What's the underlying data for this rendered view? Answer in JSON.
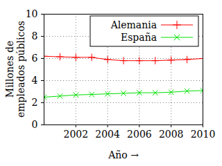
{
  "chart_data": {
    "type": "line",
    "x_label": "Año",
    "y_label": "Millones de\nempleados públicos",
    "x": [
      2000,
      2001,
      2002,
      2003,
      2004,
      2005,
      2006,
      2007,
      2008,
      2009,
      2010
    ],
    "series": [
      {
        "name": "Alemania",
        "color": "#ff0000",
        "marker": "plus",
        "values": [
          6.2,
          6.15,
          6.1,
          6.1,
          5.9,
          5.8,
          5.8,
          5.8,
          5.85,
          5.9,
          6.0
        ]
      },
      {
        "name": "España",
        "color": "#00e000",
        "marker": "times",
        "values": [
          2.5,
          2.6,
          2.7,
          2.75,
          2.8,
          2.85,
          2.9,
          2.9,
          2.95,
          3.05,
          3.1
        ]
      }
    ],
    "xlim": [
      2000,
      2010
    ],
    "xticks": [
      2002,
      2004,
      2006,
      2008,
      2010
    ],
    "ylim": [
      0,
      10
    ],
    "yticks": [
      0,
      2,
      4,
      6,
      8,
      10
    ],
    "grid": true,
    "legend": "top-right"
  }
}
